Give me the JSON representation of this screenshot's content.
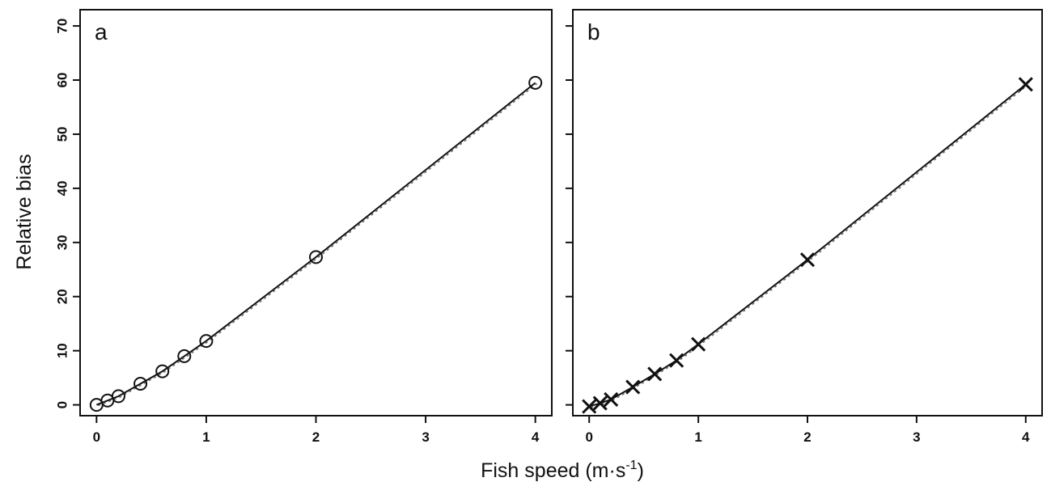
{
  "chart_data": [
    {
      "type": "line",
      "panel_label": "a",
      "marker": "circle",
      "x": [
        0,
        0.1,
        0.2,
        0.4,
        0.6,
        0.8,
        1,
        2,
        4
      ],
      "series": [
        {
          "values": [
            0,
            0.8,
            1.6,
            3.9,
            6.2,
            9.0,
            11.8,
            27.3,
            59.5
          ]
        }
      ],
      "xlim": [
        -0.15,
        4.15
      ],
      "ylim": [
        -2,
        73
      ],
      "xticks": [
        0,
        1,
        2,
        3,
        4
      ],
      "yticks": [
        0,
        10,
        20,
        30,
        40,
        50,
        60,
        70
      ],
      "ylabel": "Relative bias",
      "grid": false
    },
    {
      "type": "line",
      "panel_label": "b",
      "marker": "x",
      "x": [
        0,
        0.1,
        0.2,
        0.4,
        0.6,
        0.8,
        1,
        2,
        4
      ],
      "series": [
        {
          "values": [
            -0.3,
            0.3,
            1.0,
            3.3,
            5.7,
            8.2,
            11.2,
            26.8,
            59.2
          ]
        }
      ],
      "xlim": [
        -0.15,
        4.15
      ],
      "ylim": [
        -2,
        73
      ],
      "xticks": [
        0,
        1,
        2,
        3,
        4
      ],
      "yticks": [
        0,
        10,
        20,
        30,
        40,
        50,
        60,
        70
      ],
      "grid": false
    }
  ],
  "xlabel_prefix": "Fish speed (m·s",
  "xlabel_sup": "-1",
  "xlabel_suffix": ")"
}
